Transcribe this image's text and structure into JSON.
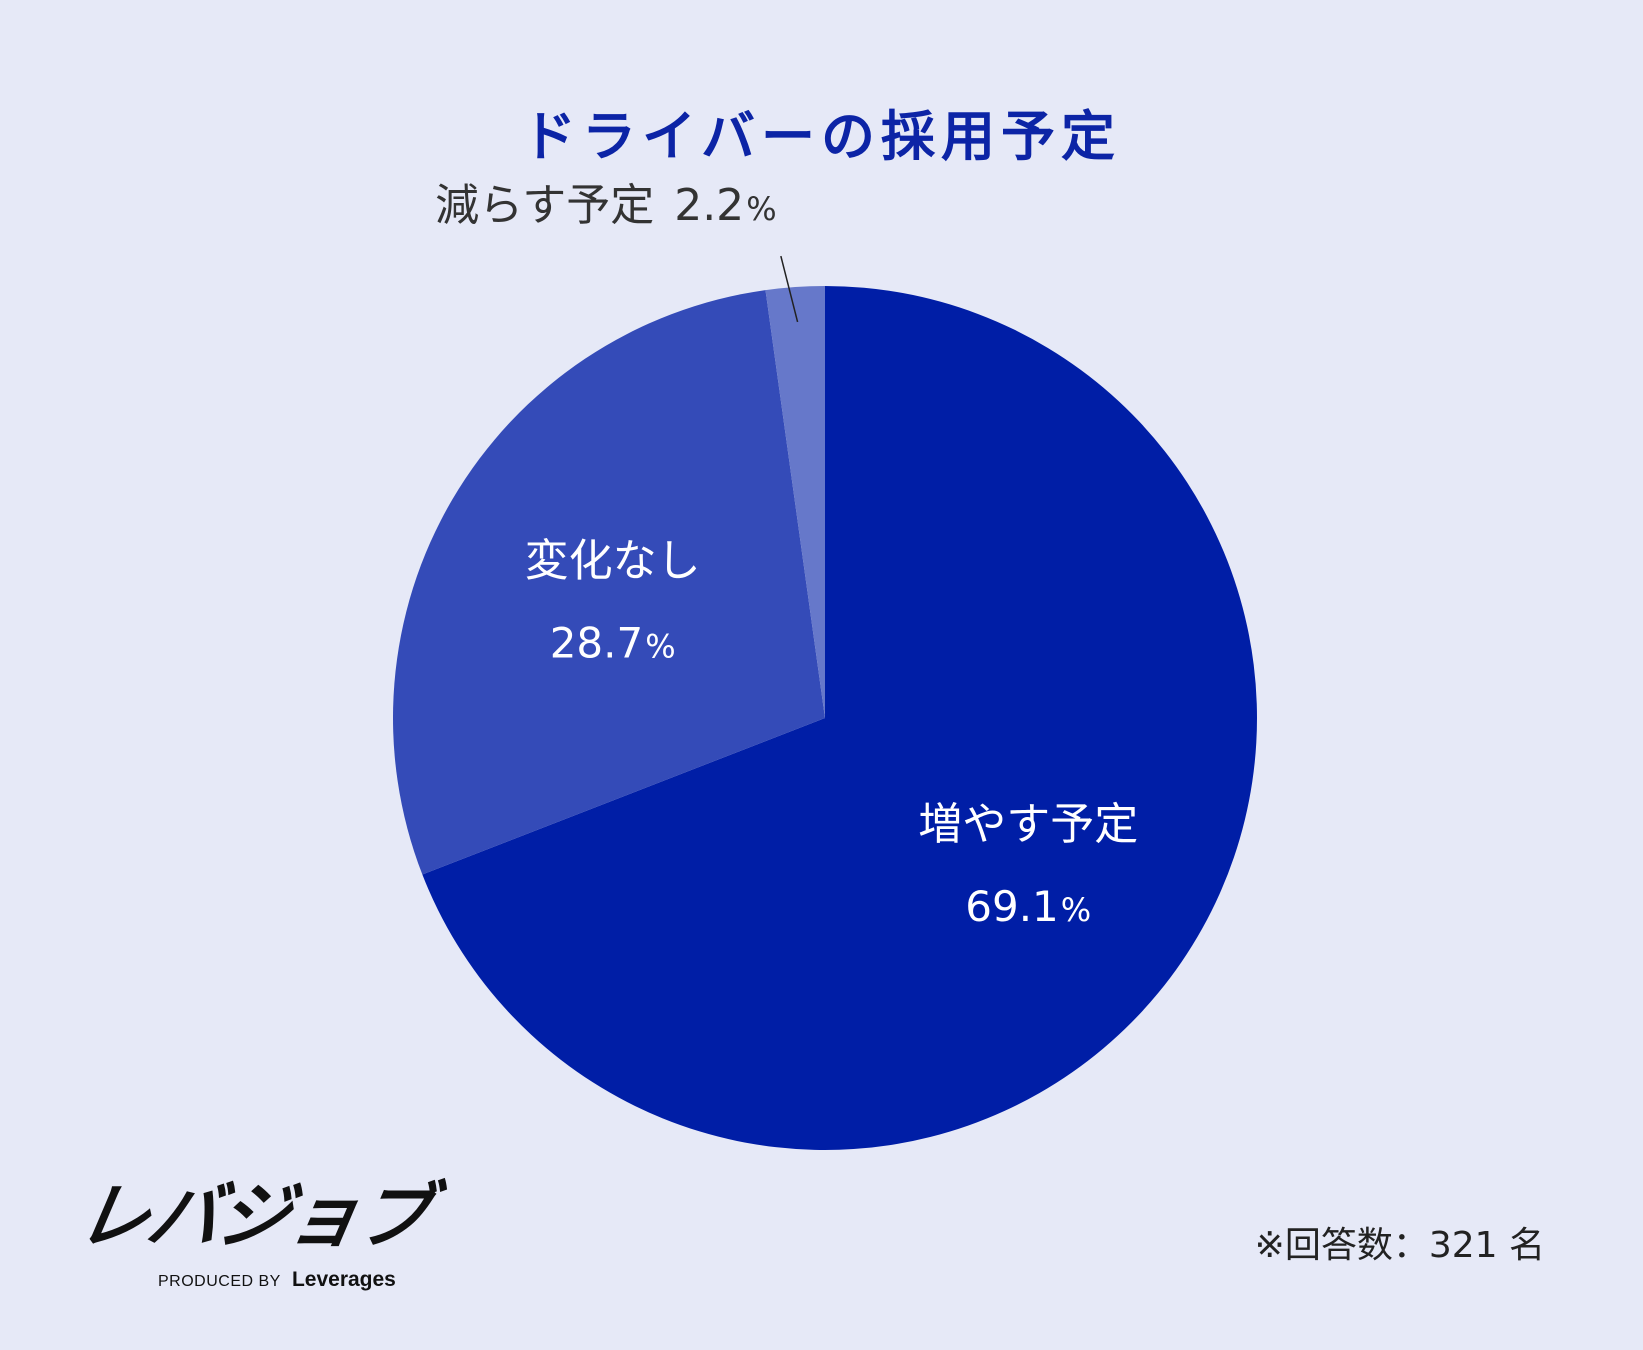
{
  "chart_data": {
    "type": "pie",
    "title": "ドライバーの採用予定",
    "slices": [
      {
        "label": "増やす予定",
        "value": 69.1,
        "value_text": "69.1",
        "unit": "%",
        "color": "#001ea6"
      },
      {
        "label": "変化なし",
        "value": 28.7,
        "value_text": "28.7",
        "unit": "%",
        "color": "#344bb8"
      },
      {
        "label": "減らす予定",
        "value": 2.2,
        "value_text": "2.2",
        "unit": "%",
        "color": "#6678ca"
      }
    ],
    "start_angle_deg": 0,
    "direction": "clockwise"
  },
  "note": "※回答数：321 名",
  "logo": {
    "name": "レバジョブ",
    "produced_by": "PRODUCED BY",
    "brand": "Leverages"
  }
}
